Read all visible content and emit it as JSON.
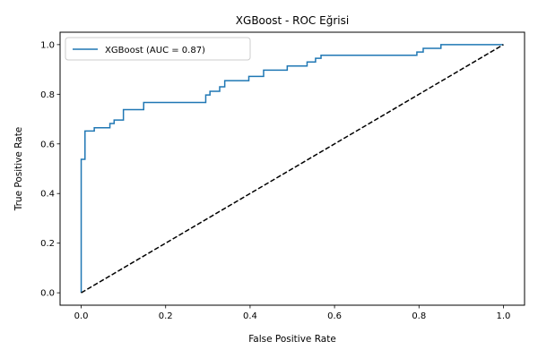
{
  "chart_data": {
    "type": "line",
    "title": "XGBoost - ROC Eğrisi",
    "xlabel": "False Positive Rate",
    "ylabel": "True Positive Rate",
    "xlim": [
      -0.05,
      1.05
    ],
    "ylim": [
      -0.05,
      1.05
    ],
    "x_ticks": [
      "0.0",
      "0.2",
      "0.4",
      "0.6",
      "0.8",
      "1.0"
    ],
    "y_ticks": [
      "0.0",
      "0.2",
      "0.4",
      "0.6",
      "0.8",
      "1.0"
    ],
    "grid": false,
    "legend_position": "top-left",
    "series": [
      {
        "name": "XGBoost (AUC = 0.87)",
        "color": "#1f77b4",
        "style": "solid",
        "x": [
          0.0,
          0.0,
          0.009,
          0.009,
          0.031,
          0.031,
          0.068,
          0.068,
          0.078,
          0.078,
          0.1,
          0.1,
          0.148,
          0.148,
          0.295,
          0.295,
          0.305,
          0.305,
          0.328,
          0.328,
          0.34,
          0.34,
          0.397,
          0.397,
          0.432,
          0.432,
          0.488,
          0.488,
          0.535,
          0.535,
          0.555,
          0.555,
          0.568,
          0.568,
          0.795,
          0.795,
          0.81,
          0.81,
          0.852,
          0.852,
          1.0
        ],
        "y": [
          0.0,
          0.538,
          0.538,
          0.652,
          0.652,
          0.665,
          0.665,
          0.682,
          0.682,
          0.696,
          0.696,
          0.738,
          0.738,
          0.767,
          0.767,
          0.797,
          0.797,
          0.812,
          0.812,
          0.83,
          0.83,
          0.855,
          0.855,
          0.872,
          0.872,
          0.897,
          0.897,
          0.914,
          0.914,
          0.93,
          0.93,
          0.945,
          0.945,
          0.957,
          0.957,
          0.97,
          0.97,
          0.985,
          0.985,
          1.0,
          1.0
        ]
      },
      {
        "name": "",
        "color": "#000000",
        "style": "dashed",
        "x": [
          0.0,
          1.0
        ],
        "y": [
          0.0,
          1.0
        ]
      }
    ]
  }
}
